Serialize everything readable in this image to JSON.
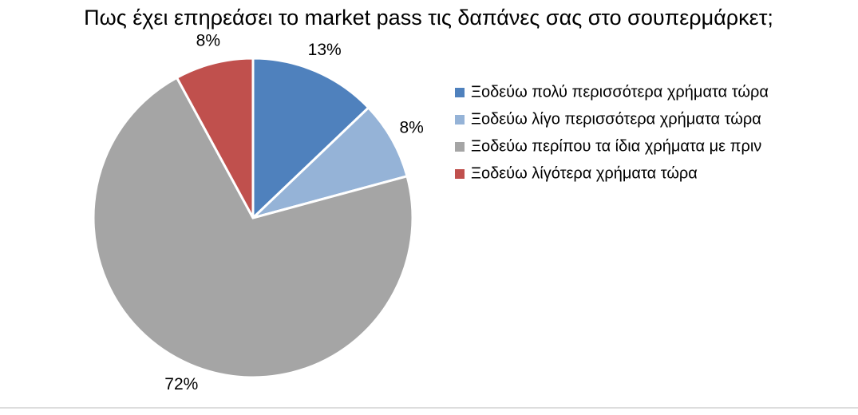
{
  "chart_data": {
    "type": "pie",
    "title": "Πως έχει επηρεάσει το market pass τις δαπάνες σας στο σουπερμάρκετ;",
    "categories": [
      "Ξοδεύω πολύ περισσότερα χρήματα τώρα",
      "Ξοδεύω λίγο περισσότερα χρήματα τώρα",
      "Ξοδεύω περίπου τα ίδια χρήματα με πριν",
      "Ξοδεύω λίγότερα χρήματα τώρα"
    ],
    "values": [
      13,
      8,
      72,
      8
    ],
    "value_labels": [
      "13%",
      "8%",
      "72%",
      "8%"
    ],
    "colors": [
      "#4f81bd",
      "#95b3d7",
      "#a5a5a5",
      "#c0504d"
    ],
    "legend": "right"
  }
}
